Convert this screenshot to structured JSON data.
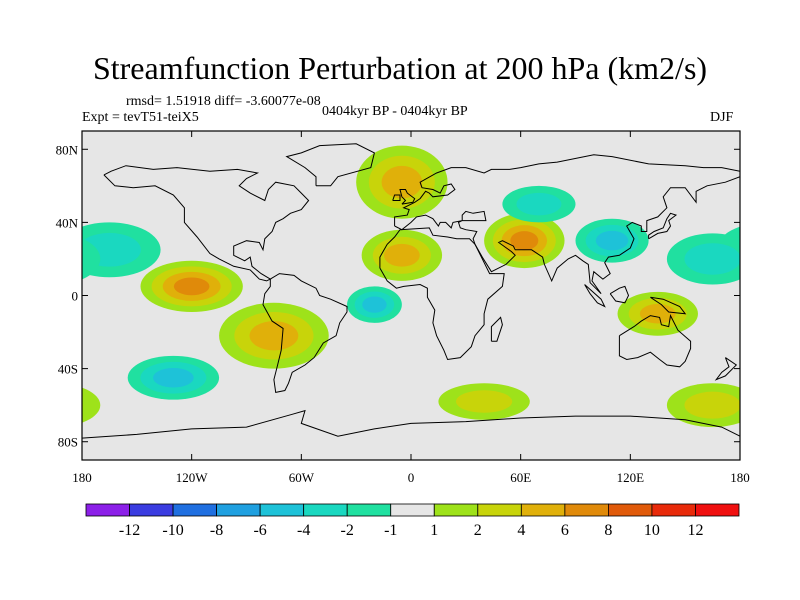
{
  "title": "Streamfunction Perturbation at 200 hPa (km2/s)",
  "stats": "rmsd= 1.51918 diff= -3.60077e-08",
  "experiment": "Expt = tevT51-teiX5",
  "period": "0404kyr BP - 0404kyr BP",
  "season": "DJF",
  "colors": {
    "background": "#e6e6e6",
    "outline": "#000000"
  },
  "chart_data": {
    "type": "map-contour",
    "variable": "Streamfunction Perturbation",
    "level": "200 hPa",
    "units": "km2/s",
    "x_ticks": [
      "180",
      "120W",
      "60W",
      "0",
      "60E",
      "120E",
      "180"
    ],
    "x_tick_lons": [
      -180,
      -120,
      -60,
      0,
      60,
      120,
      180
    ],
    "y_ticks": [
      "80N",
      "40N",
      "0",
      "40S",
      "80S"
    ],
    "y_tick_lats": [
      80,
      40,
      0,
      -40,
      -80
    ],
    "lat_range": [
      -90,
      90
    ],
    "lon_range": [
      -180,
      180
    ],
    "colorbar": {
      "labels": [
        "-12",
        "-10",
        "-8",
        "-6",
        "-4",
        "-2",
        "-1",
        "1",
        "2",
        "4",
        "6",
        "8",
        "10",
        "12"
      ],
      "colors": [
        "#8c20e8",
        "#3a3ce0",
        "#1f6fe0",
        "#1fa0e0",
        "#1ec2d8",
        "#1ad8c0",
        "#20e0a0",
        "#e6e6e6",
        "#9ee21a",
        "#c8d40a",
        "#e0b00a",
        "#e08a0a",
        "#e05a0a",
        "#e82a0a",
        "#f01010"
      ]
    },
    "features": [
      {
        "name": "North Atlantic / Scandinavia high",
        "level": 4,
        "lon": -5,
        "lat": 62,
        "rlon": 25,
        "rlat": 20
      },
      {
        "name": "Central Asia / Tibet high",
        "level": 6,
        "lon": 62,
        "lat": 30,
        "rlon": 22,
        "rlat": 15
      },
      {
        "name": "North Africa high",
        "level": 4,
        "lon": -5,
        "lat": 22,
        "rlon": 22,
        "rlat": 14
      },
      {
        "name": "Eastern Pacific high",
        "level": 6,
        "lon": -120,
        "lat": 5,
        "rlon": 28,
        "rlat": 14
      },
      {
        "name": "South America high",
        "level": 4,
        "lon": -75,
        "lat": -22,
        "rlon": 30,
        "rlat": 18
      },
      {
        "name": "Maritime Continent high",
        "level": 4,
        "lon": 135,
        "lat": -10,
        "rlon": 22,
        "rlat": 12
      },
      {
        "name": "Southern Ocean high (Indian)",
        "level": 2,
        "lon": 40,
        "lat": -58,
        "rlon": 25,
        "rlat": 10
      },
      {
        "name": "Southern Ocean high (Pacific)",
        "level": 2,
        "lon": 165,
        "lat": -60,
        "rlon": 25,
        "rlat": 12
      },
      {
        "name": "Siberia low",
        "level": -2,
        "lon": 70,
        "lat": 50,
        "rlon": 20,
        "rlat": 10
      },
      {
        "name": "North Pacific low",
        "level": -2,
        "lon": -165,
        "lat": 25,
        "rlon": 28,
        "rlat": 15
      },
      {
        "name": "China / West Pacific low",
        "level": -4,
        "lon": 110,
        "lat": 30,
        "rlon": 20,
        "rlat": 12
      },
      {
        "name": "Central Pacific low",
        "level": -2,
        "lon": 165,
        "lat": 20,
        "rlon": 25,
        "rlat": 14
      },
      {
        "name": "South Atlantic low",
        "level": -4,
        "lon": -20,
        "lat": -5,
        "rlon": 15,
        "rlat": 10
      },
      {
        "name": "South Pacific low",
        "level": -4,
        "lon": -130,
        "lat": -45,
        "rlon": 25,
        "rlat": 12
      }
    ]
  }
}
